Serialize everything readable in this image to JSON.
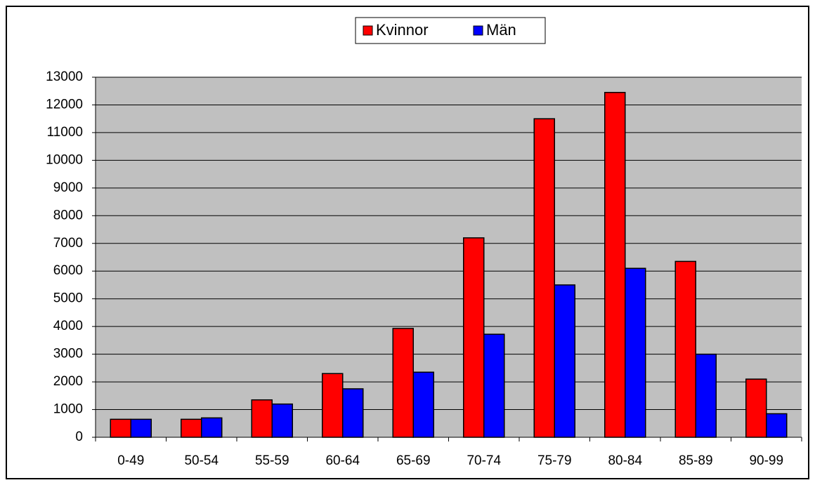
{
  "chart_data": {
    "type": "bar",
    "categories": [
      "0-49",
      "50-54",
      "55-59",
      "60-64",
      "65-69",
      "70-74",
      "75-79",
      "80-84",
      "85-89",
      "90-99"
    ],
    "series": [
      {
        "name": "Kvinnor",
        "color": "#ff0000",
        "values": [
          650,
          650,
          1350,
          2300,
          3930,
          7200,
          11500,
          12450,
          6350,
          2100
        ]
      },
      {
        "name": "Män",
        "color": "#0000ff",
        "values": [
          650,
          700,
          1200,
          1750,
          2350,
          3720,
          5500,
          6100,
          3000,
          850
        ]
      }
    ],
    "ylim": [
      0,
      13000
    ],
    "yticks": [
      0,
      1000,
      2000,
      3000,
      4000,
      5000,
      6000,
      7000,
      8000,
      9000,
      10000,
      11000,
      12000,
      13000
    ],
    "grid": true,
    "legend": "top"
  }
}
